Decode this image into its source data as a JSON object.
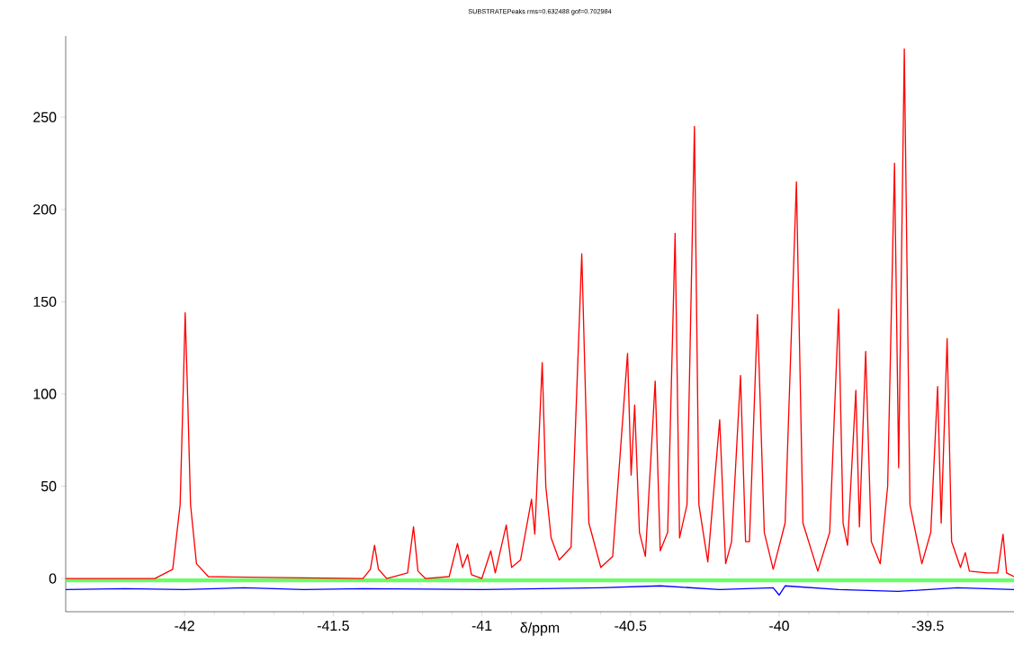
{
  "chart_data": {
    "type": "line",
    "title": "SUBSTRATEPeaks rms=0.632488 gof=0.702984",
    "xlabel": "δ/ppm",
    "xlim": [
      -42.4,
      -39.21
    ],
    "ylim": [
      -18,
      294
    ],
    "xticks": [
      -42,
      -41.5,
      -41,
      -40.5,
      -40,
      -39.5
    ],
    "yticks": [
      0,
      50,
      100,
      150,
      200,
      250
    ],
    "grid": false,
    "marker": "none",
    "line_style": "solid",
    "bands": [
      {
        "axis": "y",
        "from": -2,
        "to": 0,
        "color": "#66ff66"
      }
    ],
    "series": [
      {
        "color": "#0000ff",
        "x": [
          -42.4,
          -42.2,
          -42.0,
          -41.8,
          -41.6,
          -41.4,
          -41.0,
          -40.6,
          -40.4,
          -40.2,
          -40.02,
          -40.0,
          -39.98,
          -39.8,
          -39.6,
          -39.4,
          -39.21
        ],
        "values": [
          -6,
          -5.5,
          -6,
          -5,
          -6,
          -5.5,
          -6,
          -5,
          -4,
          -6,
          -5,
          -9,
          -4,
          -6,
          -7,
          -5,
          -6
        ]
      },
      {
        "color": "#ff0000",
        "x": [
          -42.4,
          -42.1,
          -42.04,
          -42.015,
          -42.005,
          -41.998,
          -41.99,
          -41.98,
          -41.96,
          -41.92,
          -41.4,
          -41.375,
          -41.361,
          -41.348,
          -41.32,
          -41.25,
          -41.23,
          -41.215,
          -41.19,
          -41.11,
          -41.082,
          -41.065,
          -41.048,
          -41.035,
          -41.0,
          -40.97,
          -40.955,
          -40.918,
          -40.9,
          -40.87,
          -40.833,
          -40.822,
          -40.797,
          -40.785,
          -40.767,
          -40.74,
          -40.7,
          -40.664,
          -40.64,
          -40.6,
          -40.56,
          -40.51,
          -40.498,
          -40.486,
          -40.47,
          -40.45,
          -40.417,
          -40.4,
          -40.375,
          -40.35,
          -40.335,
          -40.31,
          -40.285,
          -40.27,
          -40.24,
          -40.2,
          -40.18,
          -40.16,
          -40.13,
          -40.113,
          -40.1,
          -40.073,
          -40.05,
          -40.02,
          -39.98,
          -39.942,
          -39.92,
          -39.87,
          -39.83,
          -39.8,
          -39.785,
          -39.77,
          -39.742,
          -39.73,
          -39.709,
          -39.69,
          -39.66,
          -39.635,
          -39.612,
          -39.598,
          -39.579,
          -39.56,
          -39.52,
          -39.49,
          -39.467,
          -39.455,
          -39.435,
          -39.42,
          -39.39,
          -39.374,
          -39.36,
          -39.3,
          -39.265,
          -39.247,
          -39.235,
          -39.21
        ],
        "values": [
          0,
          0,
          5,
          40,
          100,
          144,
          100,
          40,
          8,
          1,
          0,
          5,
          18,
          5,
          0,
          3,
          28,
          4,
          0,
          1,
          19,
          6,
          13,
          2,
          0,
          15,
          3,
          29,
          6,
          10,
          43,
          24,
          117,
          50,
          22,
          10,
          17,
          176,
          30,
          6,
          12,
          122,
          56,
          94,
          25,
          12,
          107,
          15,
          25,
          187,
          22,
          40,
          245,
          40,
          9,
          86,
          8,
          20,
          110,
          20,
          20,
          143,
          25,
          5,
          30,
          215,
          30,
          4,
          25,
          146,
          30,
          18,
          102,
          28,
          123,
          20,
          8,
          50,
          225,
          60,
          287,
          40,
          8,
          25,
          104,
          30,
          130,
          20,
          6,
          14,
          4,
          3,
          3,
          24,
          3,
          1
        ]
      }
    ]
  }
}
